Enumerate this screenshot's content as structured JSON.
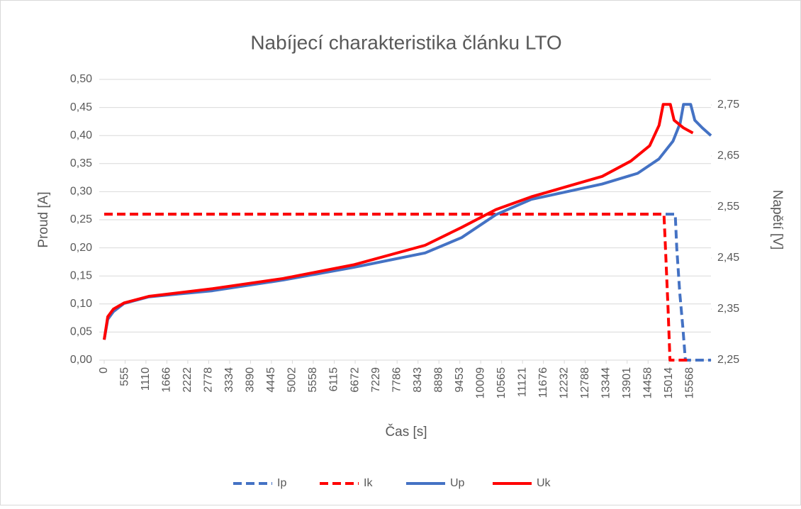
{
  "chart_data": {
    "type": "line",
    "title": "Nabíjecí charakteristika článku LTO",
    "xlabel": "Čas [s]",
    "ylabel": "Proud [A]",
    "y2label": "Napětí [V]",
    "xlim": [
      0,
      16130
    ],
    "xticks": [
      0,
      555,
      1110,
      1666,
      2222,
      2778,
      3334,
      3890,
      4445,
      5002,
      5558,
      6115,
      6672,
      7229,
      7786,
      8343,
      8898,
      9453,
      10009,
      10565,
      11121,
      11676,
      12232,
      12788,
      13344,
      13901,
      14458,
      15014,
      15568
    ],
    "ylim": [
      0,
      0.5
    ],
    "yticks": [
      {
        "value": 0,
        "label": "0,00"
      },
      {
        "value": 0.05,
        "label": "0,05"
      },
      {
        "value": 0.1,
        "label": "0,10"
      },
      {
        "value": 0.15,
        "label": "0,15"
      },
      {
        "value": 0.2,
        "label": "0,20"
      },
      {
        "value": 0.25,
        "label": "0,25"
      },
      {
        "value": 0.3,
        "label": "0,30"
      },
      {
        "value": 0.35,
        "label": "0,35"
      },
      {
        "value": 0.4,
        "label": "0,40"
      },
      {
        "value": 0.45,
        "label": "0,45"
      },
      {
        "value": 0.5,
        "label": "0,50"
      }
    ],
    "y2lim": [
      2.25,
      2.8
    ],
    "y2ticks": [
      {
        "value": 2.25,
        "label": "2,25"
      },
      {
        "value": 2.35,
        "label": "2,35"
      },
      {
        "value": 2.45,
        "label": "2,45"
      },
      {
        "value": 2.55,
        "label": "2,55"
      },
      {
        "value": 2.65,
        "label": "2,65"
      },
      {
        "value": 2.75,
        "label": "2,75"
      }
    ],
    "grid": true,
    "legend": "bottom",
    "series": [
      {
        "name": "Ip",
        "color": "#4472c4",
        "dash": true,
        "x": [
          0,
          15180,
          15220,
          15300,
          15380,
          15450,
          16130
        ],
        "values": [
          0.26,
          0.26,
          0.2,
          0.12,
          0.06,
          0,
          0
        ]
      },
      {
        "name": "Ik",
        "color": "#ff0000",
        "dash": true,
        "x": [
          0,
          14880,
          14920,
          14990,
          15040,
          15600
        ],
        "values": [
          0.26,
          0.26,
          0.2,
          0.09,
          0,
          0
        ]
      },
      {
        "name": "Up",
        "color": "#4472c4",
        "axis": "y2",
        "x": [
          0,
          94,
          245,
          527,
          1186,
          2881,
          4764,
          6647,
          8530,
          9500,
          10413,
          11355,
          12296,
          13238,
          14180,
          14745,
          15120,
          15310,
          15400,
          15590,
          15700,
          15900,
          16130
        ],
        "values": [
          2.29,
          2.33,
          2.345,
          2.361,
          2.374,
          2.386,
          2.407,
          2.432,
          2.46,
          2.49,
          2.535,
          2.565,
          2.58,
          2.595,
          2.616,
          2.644,
          2.679,
          2.714,
          2.751,
          2.751,
          2.72,
          2.705,
          2.69
        ]
      },
      {
        "name": "Uk",
        "color": "#ff0000",
        "axis": "y2",
        "x": [
          0,
          94,
          245,
          527,
          1186,
          2881,
          4764,
          6647,
          8530,
          9500,
          10413,
          11355,
          12296,
          13238,
          14000,
          14500,
          14750,
          14860,
          15050,
          15150,
          15400,
          15650
        ],
        "values": [
          2.29,
          2.335,
          2.35,
          2.362,
          2.375,
          2.39,
          2.41,
          2.437,
          2.475,
          2.51,
          2.545,
          2.57,
          2.59,
          2.61,
          2.64,
          2.67,
          2.71,
          2.751,
          2.751,
          2.72,
          2.705,
          2.695
        ]
      }
    ]
  }
}
